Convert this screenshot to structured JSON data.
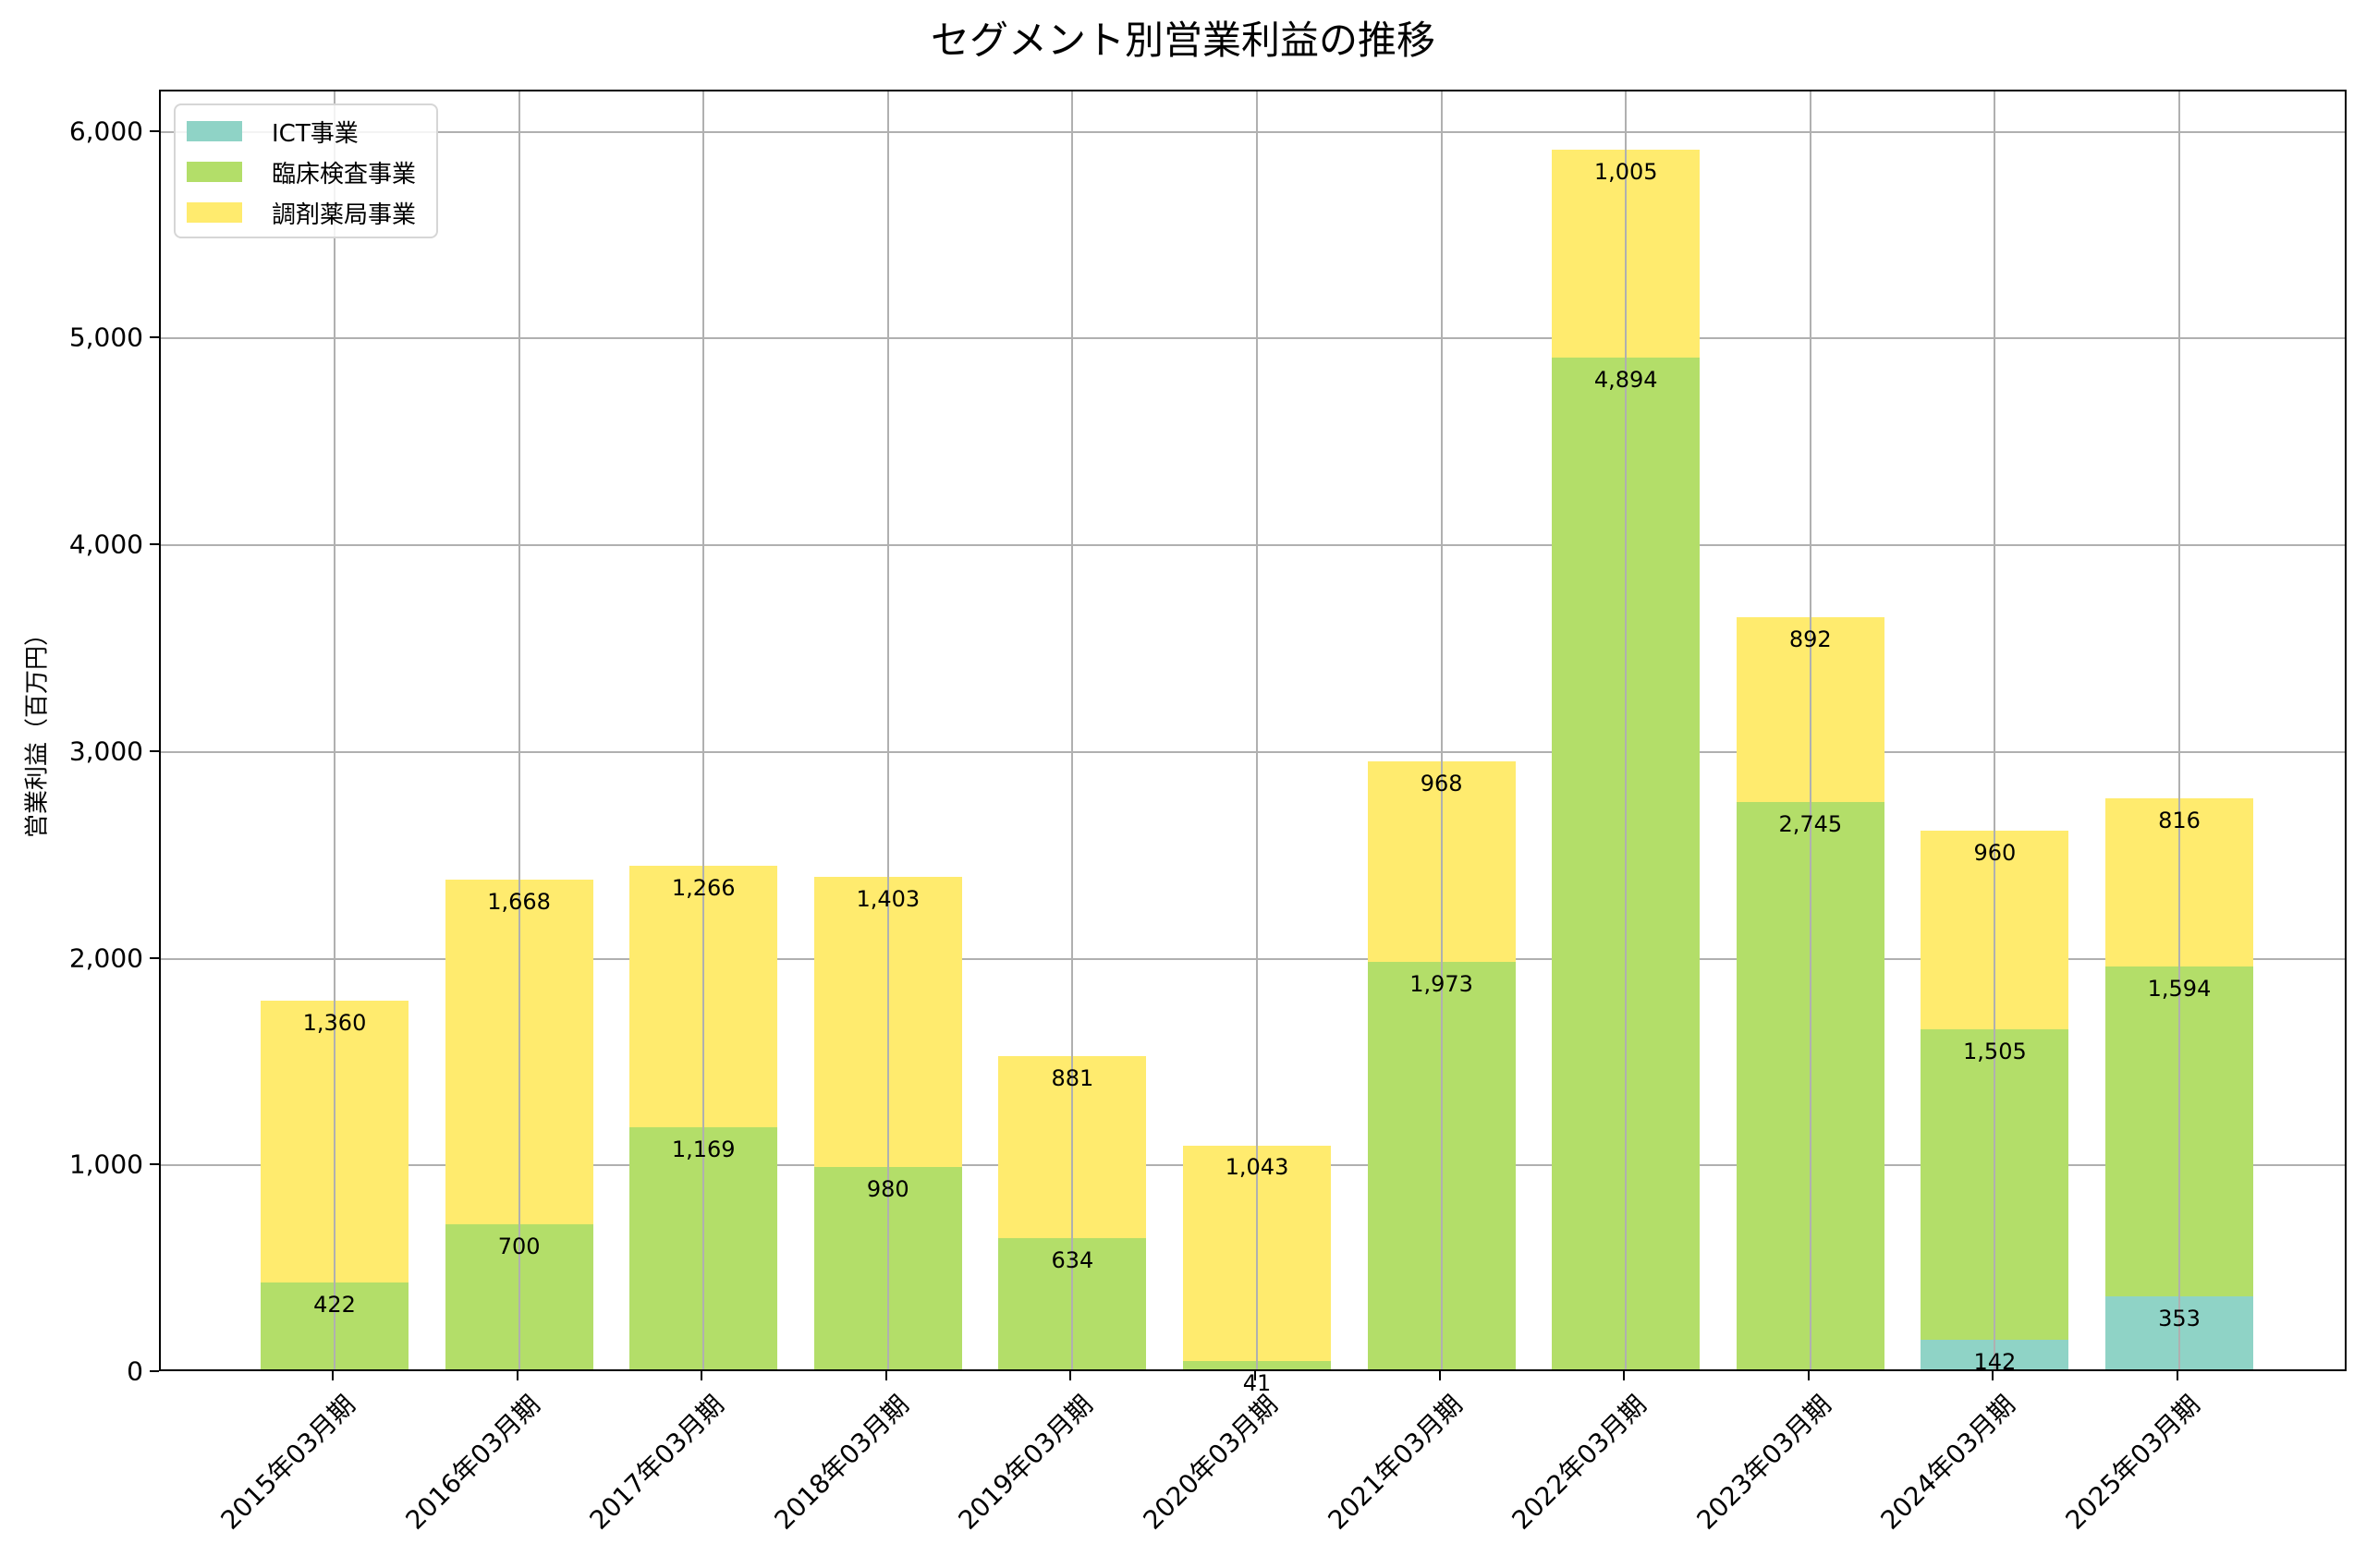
{
  "title": "セグメント別営業利益の推移",
  "colors": {
    "ict": "#8fd3c6",
    "clinical": "#b3de69",
    "pharmacy": "#ffeb6e"
  },
  "legend": [
    {
      "label": "ICT事業",
      "color": "#8fd3c6"
    },
    {
      "label": "臨床検査事業",
      "color": "#b3de69"
    },
    {
      "label": "調剤薬局事業",
      "color": "#ffeb6e"
    }
  ],
  "yaxis": {
    "label": "営業利益（百万円）",
    "ticks": [
      "0",
      "1,000",
      "2,000",
      "3,000",
      "4,000",
      "5,000",
      "6,000"
    ]
  },
  "chart_data": {
    "type": "bar",
    "stacked": true,
    "title": "セグメント別営業利益の推移",
    "xlabel": "",
    "ylabel": "営業利益（百万円）",
    "ylim": [
      0,
      6200
    ],
    "grid": true,
    "legend_position": "upper left",
    "categories": [
      "2015年03月期",
      "2016年03月期",
      "2017年03月期",
      "2018年03月期",
      "2019年03月期",
      "2020年03月期",
      "2021年03月期",
      "2022年03月期",
      "2023年03月期",
      "2024年03月期",
      "2025年03月期"
    ],
    "series": [
      {
        "name": "ICT事業",
        "color": "#8fd3c6",
        "values": [
          0,
          0,
          0,
          0,
          0,
          0,
          0,
          0,
          0,
          142,
          353
        ]
      },
      {
        "name": "臨床検査事業",
        "color": "#b3de69",
        "values": [
          422,
          700,
          1169,
          980,
          634,
          41,
          1973,
          4894,
          2745,
          1505,
          1594
        ]
      },
      {
        "name": "調剤薬局事業",
        "color": "#ffeb6e",
        "values": [
          1360,
          1668,
          1266,
          1403,
          881,
          1043,
          968,
          1005,
          892,
          960,
          816
        ]
      }
    ],
    "data_labels": {
      "ICT事業": [
        "",
        "",
        "",
        "",
        "",
        "",
        "",
        "",
        "",
        "142",
        "353"
      ],
      "臨床検査事業": [
        "422",
        "700",
        "1,169",
        "980",
        "634",
        "41",
        "1,973",
        "4,894",
        "2,745",
        "1,505",
        "1,594"
      ],
      "調剤薬局事業": [
        "1,360",
        "1,668",
        "1,266",
        "1,403",
        "881",
        "1,043",
        "968",
        "1,005",
        "892",
        "960",
        "816"
      ]
    }
  }
}
